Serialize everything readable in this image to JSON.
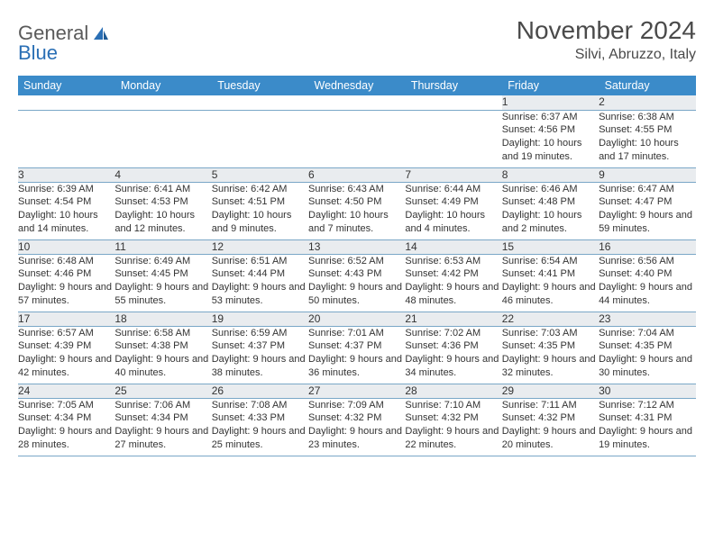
{
  "logo": {
    "word1": "General",
    "word2": "Blue"
  },
  "title": "November 2024",
  "location": "Silvi, Abruzzo, Italy",
  "colors": {
    "header_bg": "#3b8bc9",
    "header_text": "#ffffff",
    "daynum_bg": "#e9ecef",
    "rule": "#7aa7c7",
    "text": "#333333",
    "logo_gray": "#5a5a5a",
    "logo_blue": "#2a6fb5"
  },
  "weekdays": [
    "Sunday",
    "Monday",
    "Tuesday",
    "Wednesday",
    "Thursday",
    "Friday",
    "Saturday"
  ],
  "weeks": [
    [
      null,
      null,
      null,
      null,
      null,
      {
        "n": "1",
        "sr": "Sunrise: 6:37 AM",
        "ss": "Sunset: 4:56 PM",
        "dl": "Daylight: 10 hours and 19 minutes."
      },
      {
        "n": "2",
        "sr": "Sunrise: 6:38 AM",
        "ss": "Sunset: 4:55 PM",
        "dl": "Daylight: 10 hours and 17 minutes."
      }
    ],
    [
      {
        "n": "3",
        "sr": "Sunrise: 6:39 AM",
        "ss": "Sunset: 4:54 PM",
        "dl": "Daylight: 10 hours and 14 minutes."
      },
      {
        "n": "4",
        "sr": "Sunrise: 6:41 AM",
        "ss": "Sunset: 4:53 PM",
        "dl": "Daylight: 10 hours and 12 minutes."
      },
      {
        "n": "5",
        "sr": "Sunrise: 6:42 AM",
        "ss": "Sunset: 4:51 PM",
        "dl": "Daylight: 10 hours and 9 minutes."
      },
      {
        "n": "6",
        "sr": "Sunrise: 6:43 AM",
        "ss": "Sunset: 4:50 PM",
        "dl": "Daylight: 10 hours and 7 minutes."
      },
      {
        "n": "7",
        "sr": "Sunrise: 6:44 AM",
        "ss": "Sunset: 4:49 PM",
        "dl": "Daylight: 10 hours and 4 minutes."
      },
      {
        "n": "8",
        "sr": "Sunrise: 6:46 AM",
        "ss": "Sunset: 4:48 PM",
        "dl": "Daylight: 10 hours and 2 minutes."
      },
      {
        "n": "9",
        "sr": "Sunrise: 6:47 AM",
        "ss": "Sunset: 4:47 PM",
        "dl": "Daylight: 9 hours and 59 minutes."
      }
    ],
    [
      {
        "n": "10",
        "sr": "Sunrise: 6:48 AM",
        "ss": "Sunset: 4:46 PM",
        "dl": "Daylight: 9 hours and 57 minutes."
      },
      {
        "n": "11",
        "sr": "Sunrise: 6:49 AM",
        "ss": "Sunset: 4:45 PM",
        "dl": "Daylight: 9 hours and 55 minutes."
      },
      {
        "n": "12",
        "sr": "Sunrise: 6:51 AM",
        "ss": "Sunset: 4:44 PM",
        "dl": "Daylight: 9 hours and 53 minutes."
      },
      {
        "n": "13",
        "sr": "Sunrise: 6:52 AM",
        "ss": "Sunset: 4:43 PM",
        "dl": "Daylight: 9 hours and 50 minutes."
      },
      {
        "n": "14",
        "sr": "Sunrise: 6:53 AM",
        "ss": "Sunset: 4:42 PM",
        "dl": "Daylight: 9 hours and 48 minutes."
      },
      {
        "n": "15",
        "sr": "Sunrise: 6:54 AM",
        "ss": "Sunset: 4:41 PM",
        "dl": "Daylight: 9 hours and 46 minutes."
      },
      {
        "n": "16",
        "sr": "Sunrise: 6:56 AM",
        "ss": "Sunset: 4:40 PM",
        "dl": "Daylight: 9 hours and 44 minutes."
      }
    ],
    [
      {
        "n": "17",
        "sr": "Sunrise: 6:57 AM",
        "ss": "Sunset: 4:39 PM",
        "dl": "Daylight: 9 hours and 42 minutes."
      },
      {
        "n": "18",
        "sr": "Sunrise: 6:58 AM",
        "ss": "Sunset: 4:38 PM",
        "dl": "Daylight: 9 hours and 40 minutes."
      },
      {
        "n": "19",
        "sr": "Sunrise: 6:59 AM",
        "ss": "Sunset: 4:37 PM",
        "dl": "Daylight: 9 hours and 38 minutes."
      },
      {
        "n": "20",
        "sr": "Sunrise: 7:01 AM",
        "ss": "Sunset: 4:37 PM",
        "dl": "Daylight: 9 hours and 36 minutes."
      },
      {
        "n": "21",
        "sr": "Sunrise: 7:02 AM",
        "ss": "Sunset: 4:36 PM",
        "dl": "Daylight: 9 hours and 34 minutes."
      },
      {
        "n": "22",
        "sr": "Sunrise: 7:03 AM",
        "ss": "Sunset: 4:35 PM",
        "dl": "Daylight: 9 hours and 32 minutes."
      },
      {
        "n": "23",
        "sr": "Sunrise: 7:04 AM",
        "ss": "Sunset: 4:35 PM",
        "dl": "Daylight: 9 hours and 30 minutes."
      }
    ],
    [
      {
        "n": "24",
        "sr": "Sunrise: 7:05 AM",
        "ss": "Sunset: 4:34 PM",
        "dl": "Daylight: 9 hours and 28 minutes."
      },
      {
        "n": "25",
        "sr": "Sunrise: 7:06 AM",
        "ss": "Sunset: 4:34 PM",
        "dl": "Daylight: 9 hours and 27 minutes."
      },
      {
        "n": "26",
        "sr": "Sunrise: 7:08 AM",
        "ss": "Sunset: 4:33 PM",
        "dl": "Daylight: 9 hours and 25 minutes."
      },
      {
        "n": "27",
        "sr": "Sunrise: 7:09 AM",
        "ss": "Sunset: 4:32 PM",
        "dl": "Daylight: 9 hours and 23 minutes."
      },
      {
        "n": "28",
        "sr": "Sunrise: 7:10 AM",
        "ss": "Sunset: 4:32 PM",
        "dl": "Daylight: 9 hours and 22 minutes."
      },
      {
        "n": "29",
        "sr": "Sunrise: 7:11 AM",
        "ss": "Sunset: 4:32 PM",
        "dl": "Daylight: 9 hours and 20 minutes."
      },
      {
        "n": "30",
        "sr": "Sunrise: 7:12 AM",
        "ss": "Sunset: 4:31 PM",
        "dl": "Daylight: 9 hours and 19 minutes."
      }
    ]
  ]
}
